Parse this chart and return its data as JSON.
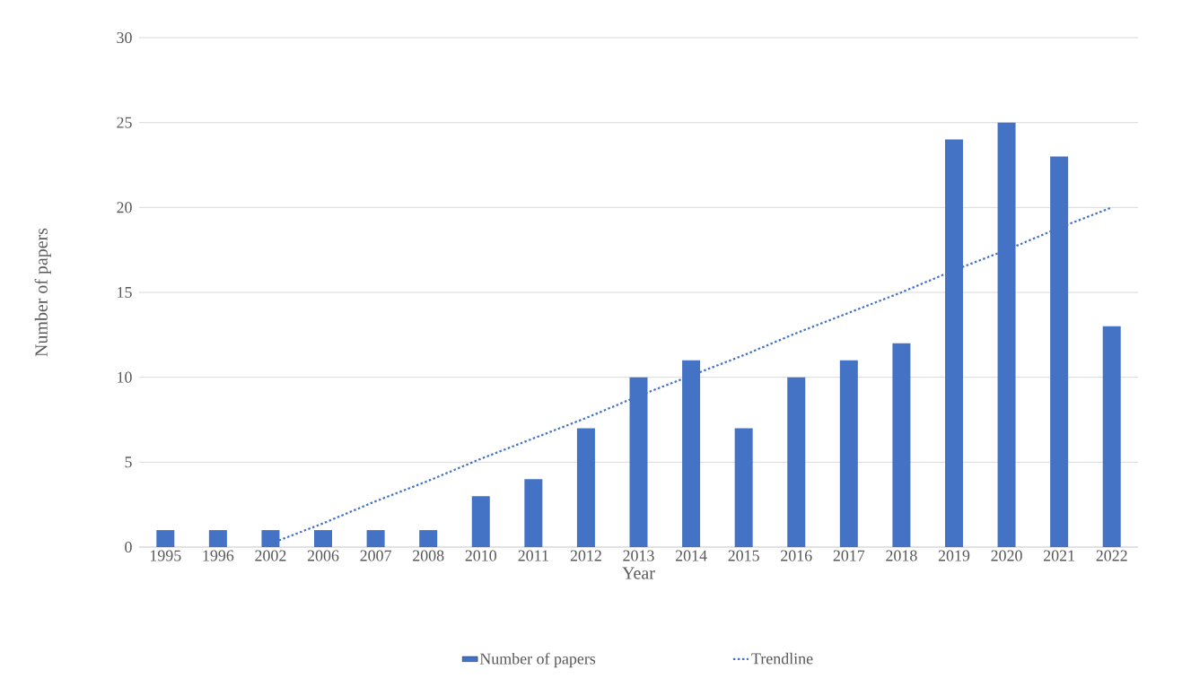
{
  "chart_data": {
    "type": "bar",
    "xlabel": "Year",
    "ylabel": "Number of papers",
    "categories": [
      "1995",
      "1996",
      "2002",
      "2006",
      "2007",
      "2008",
      "2010",
      "2011",
      "2012",
      "2013",
      "2014",
      "2015",
      "2016",
      "2017",
      "2018",
      "2019",
      "2020",
      "2021",
      "2022"
    ],
    "series": [
      {
        "name": "Number of papers",
        "color": "#4472c4",
        "values": [
          1,
          1,
          1,
          1,
          1,
          1,
          3,
          4,
          7,
          10,
          11,
          7,
          10,
          11,
          12,
          24,
          25,
          23,
          13
        ]
      },
      {
        "name": "Trendline",
        "type": "line",
        "color": "#4472c4",
        "line_style": "dotted",
        "values": [
          null,
          null,
          0.2,
          1.4,
          2.7,
          3.9,
          5.2,
          6.4,
          7.6,
          8.9,
          10.1,
          11.3,
          12.6,
          13.8,
          15.0,
          16.3,
          17.5,
          18.8,
          20.0
        ]
      }
    ],
    "ylim": [
      0,
      30
    ],
    "yticks": [
      0,
      5,
      10,
      15,
      20,
      25,
      30
    ],
    "grid": "y",
    "legend": "bottom"
  }
}
